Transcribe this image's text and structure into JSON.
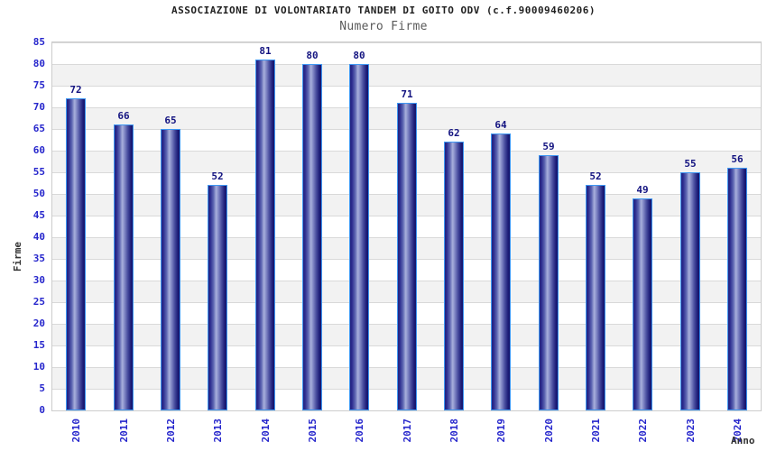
{
  "header": {
    "title": "ASSOCIAZIONE DI VOLONTARIATO TANDEM DI GOITO ODV (c.f.90009460206)",
    "subtitle": "Numero Firme"
  },
  "chart_data": {
    "type": "bar",
    "title": "ASSOCIAZIONE DI VOLONTARIATO TANDEM DI GOITO ODV (c.f.90009460206)",
    "subtitle": "Numero Firme",
    "categories": [
      "2010",
      "2011",
      "2012",
      "2013",
      "2014",
      "2015",
      "2016",
      "2017",
      "2018",
      "2019",
      "2020",
      "2021",
      "2022",
      "2023",
      "2024"
    ],
    "values": [
      72,
      66,
      65,
      52,
      81,
      80,
      80,
      71,
      62,
      64,
      59,
      52,
      49,
      55,
      56
    ],
    "xlabel": "Anno",
    "ylabel": "Firme",
    "ylim": [
      0,
      85
    ],
    "ytick_step": 5,
    "grid": true,
    "legend": "none",
    "band_colors": [
      "#ffffff",
      "#f2f2f2"
    ],
    "gridline_color": "#d9d9d9",
    "plot_border_color": "#cccccc",
    "bar_border_color": "#3e97f2",
    "bar_color_edge": "#23237f",
    "bar_color_mid": "#a9b0dc",
    "bar_color_right": "#15156a",
    "tick_label_color": "#2626cc",
    "value_label_color": "#131380",
    "title_color": "#1f1f1f",
    "subtitle_color": "#5a5a5a",
    "axis_title_color": "#333333"
  }
}
